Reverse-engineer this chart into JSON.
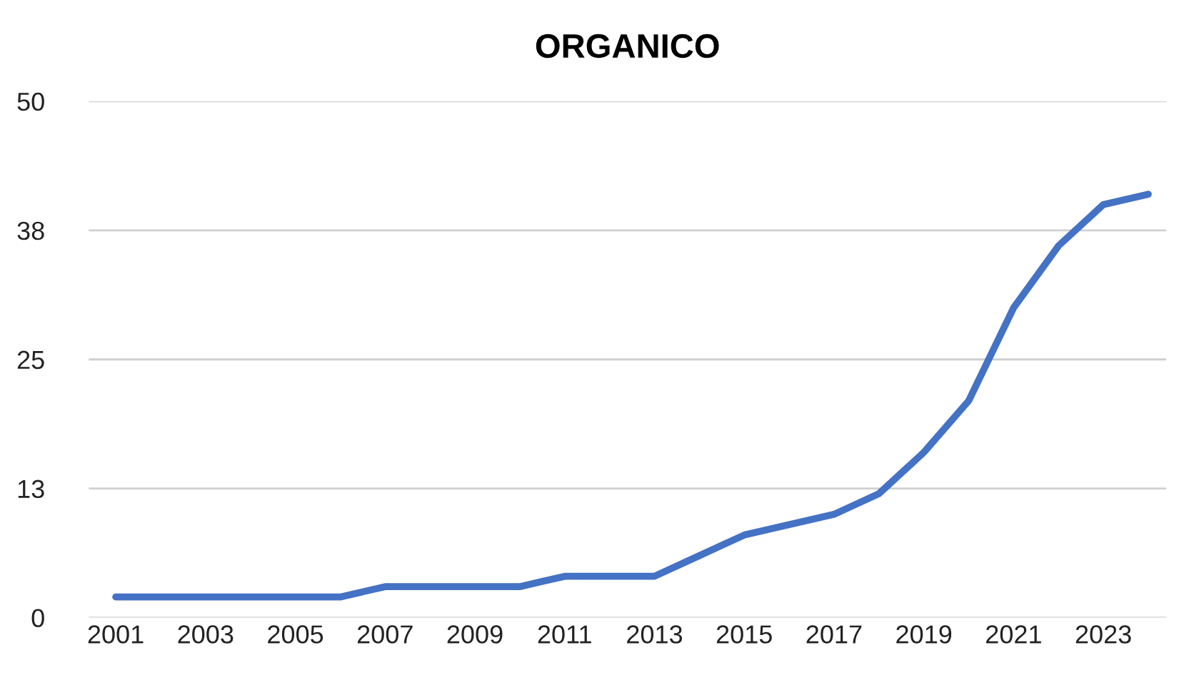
{
  "chart_data": {
    "type": "line",
    "title": "ORGANICO",
    "x": [
      2001,
      2002,
      2003,
      2004,
      2005,
      2006,
      2007,
      2008,
      2009,
      2010,
      2011,
      2012,
      2013,
      2014,
      2015,
      2016,
      2017,
      2018,
      2019,
      2020,
      2021,
      2022,
      2023,
      2024
    ],
    "series": [
      {
        "color": "#4472c4",
        "values": [
          2,
          2,
          2,
          2,
          2,
          2,
          3,
          3,
          3,
          3,
          4,
          4,
          4,
          6,
          8,
          9,
          10,
          12,
          16,
          21,
          30,
          36,
          40,
          41
        ]
      }
    ],
    "xlim": [
      2000.4,
      2024.4
    ],
    "xticks": [
      2001,
      2003,
      2005,
      2007,
      2009,
      2011,
      2013,
      2015,
      2017,
      2019,
      2021,
      2023
    ],
    "ylim": [
      0,
      50
    ],
    "yticks": [
      0,
      {
        "value": 12.5,
        "label": "13"
      },
      25,
      {
        "value": 37.5,
        "label": "38"
      },
      50
    ],
    "grid": "y",
    "marker": "none",
    "line_style": "solid"
  }
}
